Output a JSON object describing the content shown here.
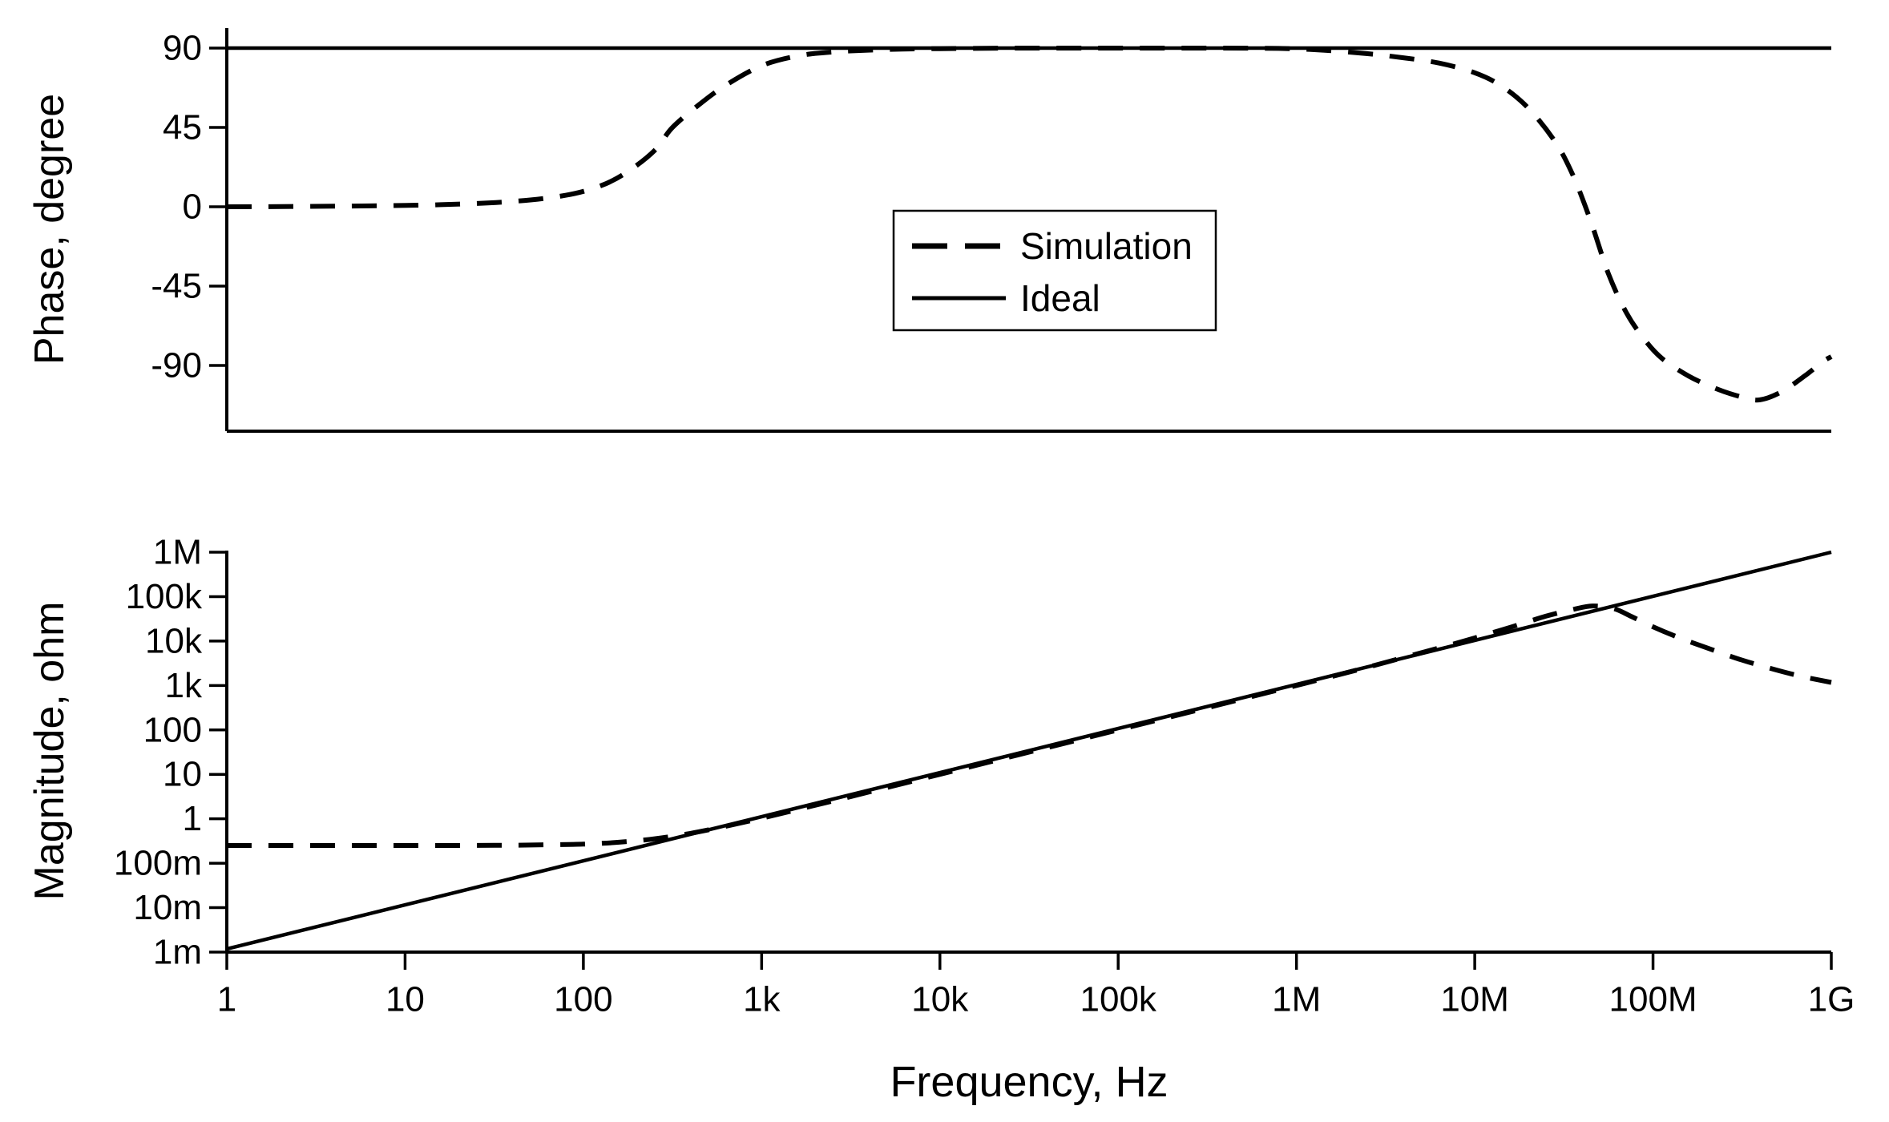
{
  "figure": {
    "background": "#ffffff",
    "line_color": "#000000",
    "description": "Bode plot of a simulated vs ideal inductor: phase (top panel) and impedance magnitude (bottom panel) versus frequency, 1 Hz to 1 GHz, log frequency axis"
  },
  "legend": {
    "items": [
      {
        "label": "Simulation",
        "style": "dashed"
      },
      {
        "label": "Ideal",
        "style": "solid"
      }
    ]
  },
  "chart_data": [
    {
      "type": "line",
      "panel": "top",
      "title": "",
      "ylabel": "Phase, degree",
      "x_scale": "log",
      "xlim_hz": [
        1,
        1000000000
      ],
      "ylim_deg": [
        -127,
        101
      ],
      "grid": false,
      "yticks": [
        {
          "value": 90,
          "label": "90"
        },
        {
          "value": 45,
          "label": "45"
        },
        {
          "value": 0,
          "label": "0"
        },
        {
          "value": -45,
          "label": "-45"
        },
        {
          "value": -90,
          "label": "-90"
        }
      ],
      "series": [
        {
          "name": "Ideal",
          "style": "solid",
          "points_log10hz_deg": [
            [
              0,
              90
            ],
            [
              9,
              90
            ]
          ]
        },
        {
          "name": "Simulation",
          "style": "dashed",
          "points_log10hz_deg": [
            [
              0,
              0
            ],
            [
              0.6,
              0.3
            ],
            [
              1.2,
              1.2
            ],
            [
              1.6,
              3
            ],
            [
              1.9,
              6.5
            ],
            [
              2.1,
              12
            ],
            [
              2.25,
              20
            ],
            [
              2.4,
              32
            ],
            [
              2.5,
              45
            ],
            [
              2.65,
              58
            ],
            [
              2.8,
              69
            ],
            [
              3.0,
              80
            ],
            [
              3.2,
              85.5
            ],
            [
              3.4,
              87.8
            ],
            [
              3.7,
              89.2
            ],
            [
              4.0,
              89.7
            ],
            [
              4.5,
              90
            ],
            [
              5.0,
              90
            ],
            [
              5.5,
              90
            ],
            [
              5.9,
              89.8
            ],
            [
              6.15,
              88.8
            ],
            [
              6.4,
              86.8
            ],
            [
              6.6,
              84.5
            ],
            [
              6.8,
              81.5
            ],
            [
              7.0,
              76
            ],
            [
              7.15,
              68.5
            ],
            [
              7.3,
              56
            ],
            [
              7.45,
              37
            ],
            [
              7.55,
              18
            ],
            [
              7.65,
              -8
            ],
            [
              7.75,
              -38
            ],
            [
              7.85,
              -60
            ],
            [
              7.95,
              -75
            ],
            [
              8.05,
              -86
            ],
            [
              8.2,
              -96
            ],
            [
              8.35,
              -103
            ],
            [
              8.5,
              -108
            ],
            [
              8.6,
              -109.5
            ],
            [
              8.72,
              -105
            ],
            [
              8.85,
              -96
            ],
            [
              8.95,
              -88
            ],
            [
              9.0,
              -85
            ]
          ]
        }
      ]
    },
    {
      "type": "line",
      "panel": "bottom",
      "title": "",
      "ylabel": "Magnitude, ohm",
      "xlabel": "Frequency, Hz",
      "x_scale": "log",
      "y_scale": "log",
      "xlim_hz": [
        1,
        1000000000
      ],
      "ylim_ohm": [
        0.001,
        1000000
      ],
      "grid": false,
      "yticks": [
        {
          "log10_ohm": 6,
          "label": "1M"
        },
        {
          "log10_ohm": 5,
          "label": "100k"
        },
        {
          "log10_ohm": 4,
          "label": "10k"
        },
        {
          "log10_ohm": 3,
          "label": "1k"
        },
        {
          "log10_ohm": 2,
          "label": "100"
        },
        {
          "log10_ohm": 1,
          "label": "10"
        },
        {
          "log10_ohm": 0,
          "label": "1"
        },
        {
          "log10_ohm": -1,
          "label": "100m"
        },
        {
          "log10_ohm": -2,
          "label": "10m"
        },
        {
          "log10_ohm": -3,
          "label": "1m"
        }
      ],
      "xticks": [
        {
          "log10_hz": 0,
          "label": "1"
        },
        {
          "log10_hz": 1,
          "label": "10"
        },
        {
          "log10_hz": 2,
          "label": "100"
        },
        {
          "log10_hz": 3,
          "label": "1k"
        },
        {
          "log10_hz": 4,
          "label": "10k"
        },
        {
          "log10_hz": 5,
          "label": "100k"
        },
        {
          "log10_hz": 6,
          "label": "1M"
        },
        {
          "log10_hz": 7,
          "label": "10M"
        },
        {
          "log10_hz": 8,
          "label": "100M"
        },
        {
          "log10_hz": 9,
          "label": "1G"
        }
      ],
      "series": [
        {
          "name": "Ideal",
          "style": "solid",
          "points_log10hz_log10ohm": [
            [
              0,
              -2.93
            ],
            [
              9,
              6.0
            ]
          ]
        },
        {
          "name": "Simulation",
          "style": "dashed",
          "points_log10hz_log10ohm": [
            [
              0,
              -0.602
            ],
            [
              0.5,
              -0.602
            ],
            [
              1.0,
              -0.601
            ],
            [
              1.5,
              -0.598
            ],
            [
              1.8,
              -0.585
            ],
            [
              2.0,
              -0.57
            ],
            [
              2.2,
              -0.528
            ],
            [
              2.4,
              -0.45
            ],
            [
              2.6,
              -0.328
            ],
            [
              2.8,
              -0.168
            ],
            [
              3.0,
              0.013
            ],
            [
              3.2,
              0.206
            ],
            [
              3.5,
              0.501
            ],
            [
              4.0,
              1.001
            ],
            [
              4.5,
              1.5
            ],
            [
              5.0,
              2.0
            ],
            [
              5.5,
              2.5
            ],
            [
              6.0,
              3.001
            ],
            [
              6.3,
              3.308
            ],
            [
              6.5,
              3.52
            ],
            [
              6.8,
              3.845
            ],
            [
              7.0,
              4.07
            ],
            [
              7.2,
              4.31
            ],
            [
              7.4,
              4.56
            ],
            [
              7.55,
              4.71
            ],
            [
              7.66,
              4.79
            ],
            [
              7.78,
              4.73
            ],
            [
              7.88,
              4.55
            ],
            [
              8.0,
              4.32
            ],
            [
              8.15,
              4.07
            ],
            [
              8.3,
              3.85
            ],
            [
              8.5,
              3.57
            ],
            [
              8.7,
              3.34
            ],
            [
              8.85,
              3.19
            ],
            [
              9.0,
              3.07
            ]
          ]
        }
      ]
    }
  ]
}
